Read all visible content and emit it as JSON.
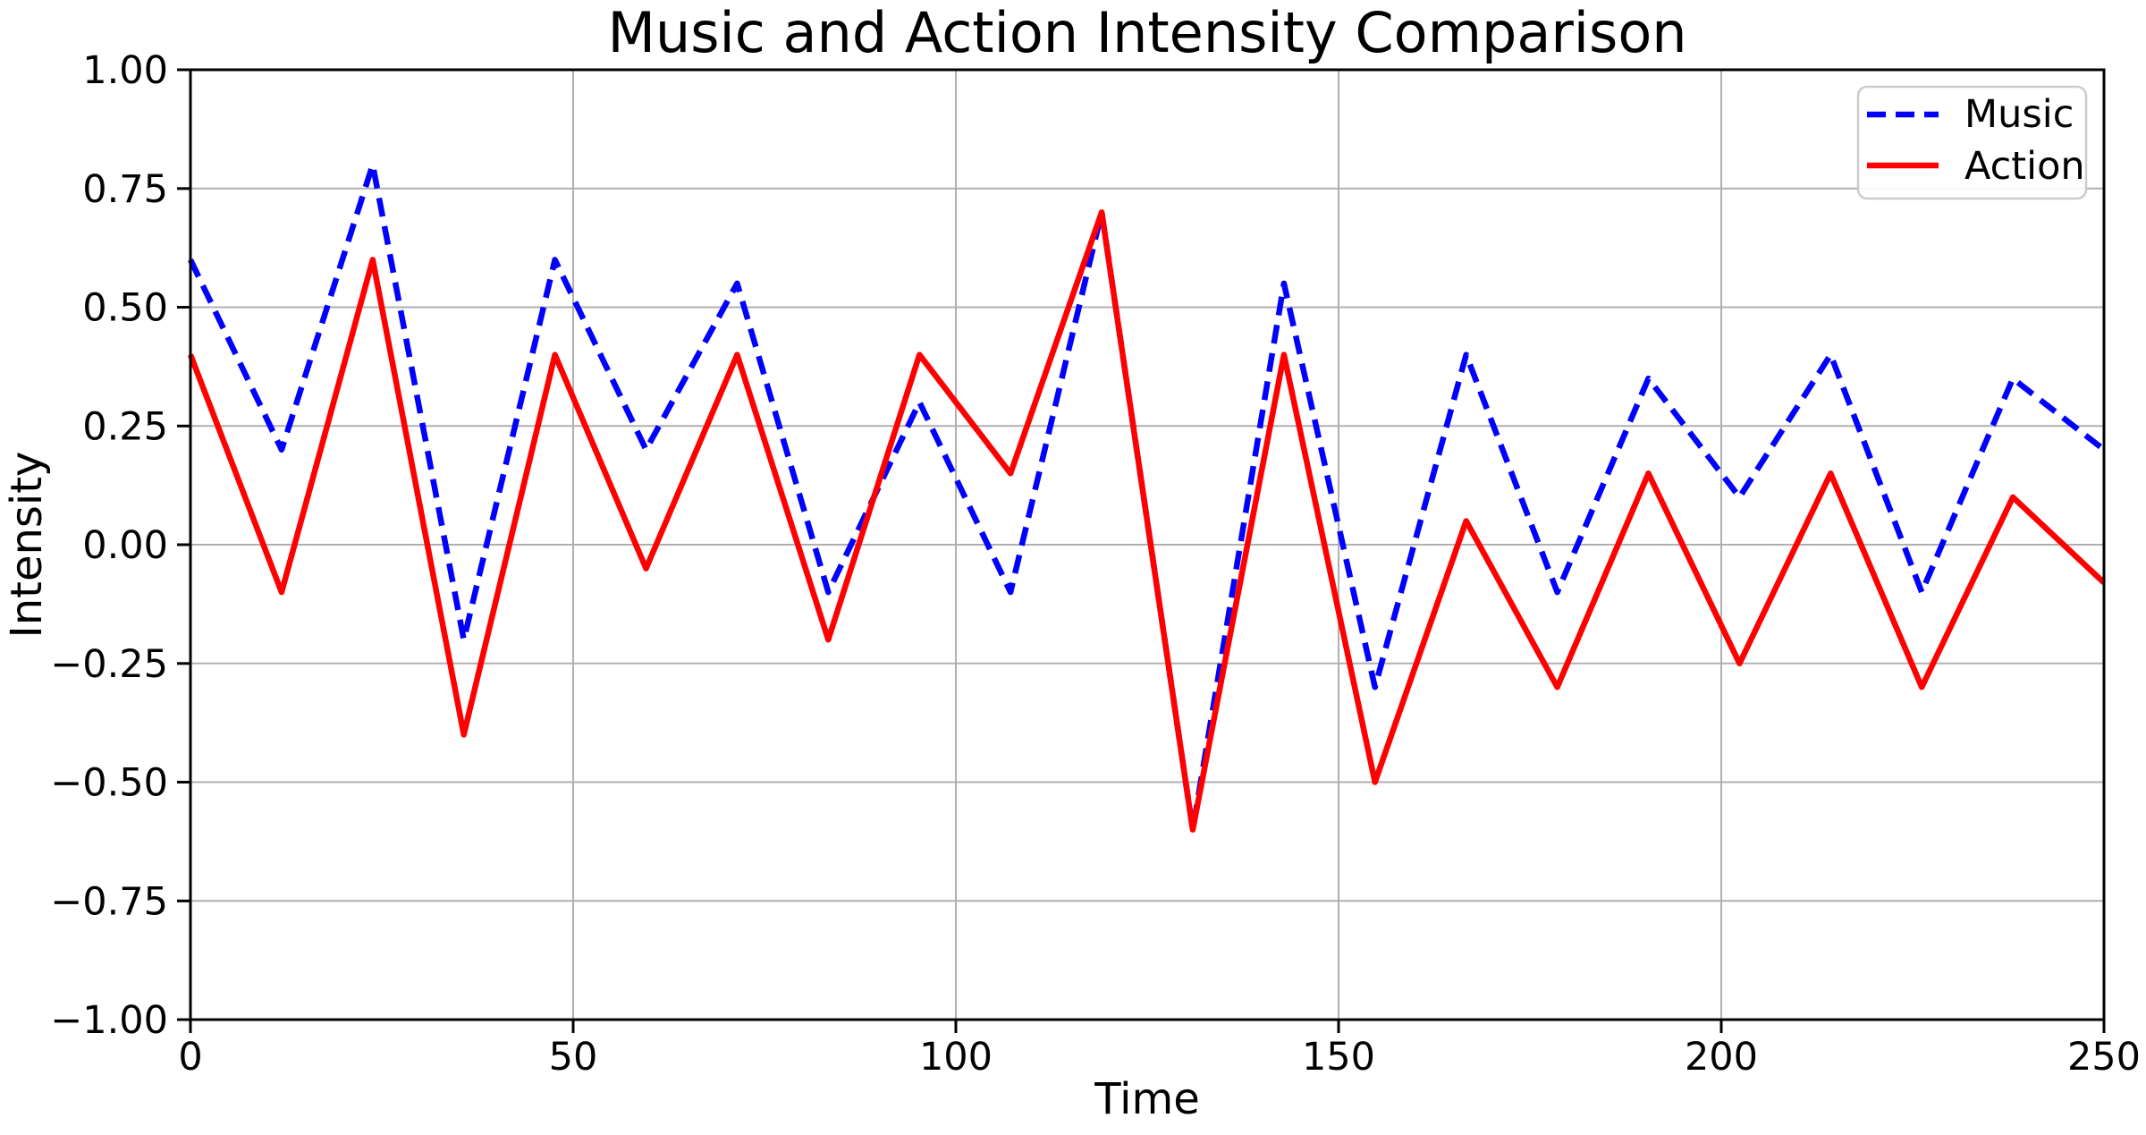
{
  "figure": {
    "title": "Music and Action Intensity Comparison"
  },
  "chart_data": {
    "type": "line",
    "title": "Music and Action Intensity Comparison",
    "xlabel": "Time",
    "ylabel": "Intensity",
    "xlim": [
      0,
      250
    ],
    "ylim": [
      -1.0,
      1.0
    ],
    "grid": true,
    "legend_position": "upper right",
    "xticks": [
      0,
      50,
      100,
      150,
      200,
      250
    ],
    "xtick_labels": [
      "0",
      "50",
      "100",
      "150",
      "200",
      "250"
    ],
    "yticks": [
      1.0,
      0.75,
      0.5,
      0.25,
      0.0,
      -0.25,
      -0.5,
      -0.75,
      -1.0
    ],
    "ytick_labels": [
      "1.00",
      "0.75",
      "0.50",
      "0.25",
      "0.00",
      "−0.25",
      "−0.50",
      "−0.75",
      "−1.00"
    ],
    "x": [
      0,
      11.9,
      23.81,
      35.71,
      47.62,
      59.52,
      71.43,
      83.33,
      95.24,
      107.14,
      119.05,
      130.95,
      142.86,
      154.76,
      166.67,
      178.57,
      190.48,
      202.38,
      214.29,
      226.19,
      238.1,
      250
    ],
    "series": [
      {
        "name": "Music",
        "color": "#0000ff",
        "line_style": "dashed",
        "values": [
          0.6,
          0.2,
          0.8,
          -0.2,
          0.6,
          0.2,
          0.55,
          -0.1,
          0.3,
          -0.1,
          0.7,
          -0.6,
          0.55,
          -0.3,
          0.4,
          -0.1,
          0.35,
          0.1,
          0.4,
          -0.1,
          0.35,
          0.2
        ]
      },
      {
        "name": "Action",
        "color": "#ff0000",
        "line_style": "solid",
        "values": [
          0.4,
          -0.1,
          0.6,
          -0.4,
          0.4,
          -0.05,
          0.4,
          -0.2,
          0.4,
          0.15,
          0.7,
          -0.6,
          0.4,
          -0.5,
          0.05,
          -0.3,
          0.15,
          -0.25,
          0.15,
          -0.3,
          0.1,
          -0.08
        ]
      }
    ]
  },
  "colors": {
    "grid": "#b0b0b0",
    "axis": "#000000",
    "text": "#000000",
    "legend_border": "#cccccc",
    "background": "#ffffff"
  }
}
